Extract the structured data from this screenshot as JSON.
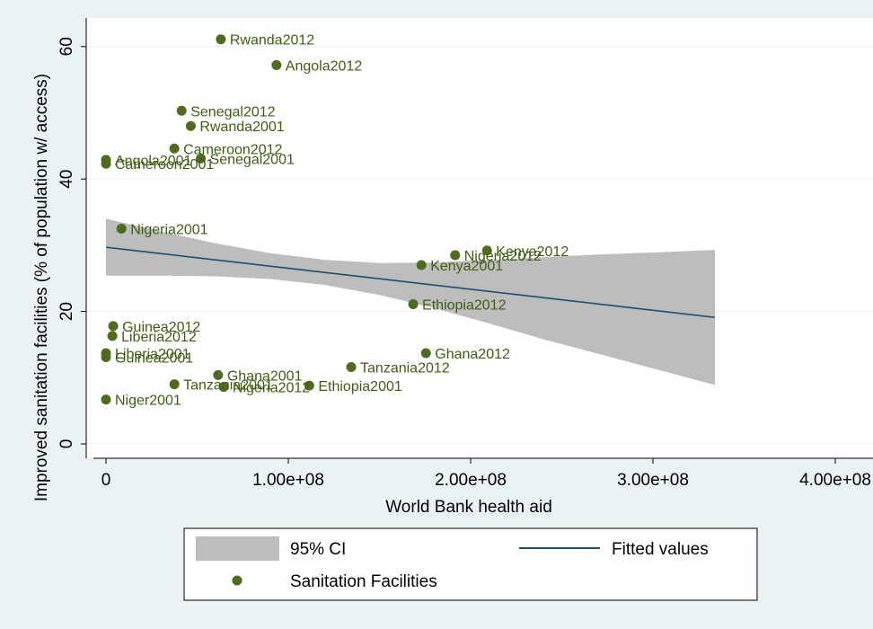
{
  "chart_data": {
    "type": "scatter",
    "xlabel": "World Bank health aid",
    "ylabel": "Improved sanitation facilities (% of population w/ access)",
    "xlim": [
      -4000000,
      405000000
    ],
    "ylim": [
      -4,
      65
    ],
    "x_ticks": [
      {
        "value": 0,
        "label": "0"
      },
      {
        "value": 100000000,
        "label": "1.00e+08"
      },
      {
        "value": 200000000,
        "label": "2.00e+08"
      },
      {
        "value": 300000000,
        "label": "3.00e+08"
      },
      {
        "value": 400000000,
        "label": "4.00e+08"
      }
    ],
    "y_ticks": [
      {
        "value": 0,
        "label": "0"
      },
      {
        "value": 20,
        "label": "20"
      },
      {
        "value": 40,
        "label": "40"
      },
      {
        "value": 60,
        "label": "60"
      }
    ],
    "grid": true,
    "colors": {
      "points": "#4f6b22",
      "labels": "#3e5e14",
      "fit_line": "#1d4f73",
      "ci_band": "#bdbdbd",
      "background": "#eaf2f3",
      "plot_background": "#ffffff"
    },
    "scatter": {
      "name": "Sanitation Facilities",
      "points": [
        {
          "label": "Rwanda2012",
          "x": 63000000,
          "y": 61.1
        },
        {
          "label": "Angola2012",
          "x": 93500000,
          "y": 57.2
        },
        {
          "label": "Senegal2012",
          "x": 41500000,
          "y": 50.3
        },
        {
          "label": "Rwanda2001",
          "x": 46500000,
          "y": 48.0
        },
        {
          "label": "Cameroon2012",
          "x": 37500000,
          "y": 44.6
        },
        {
          "label": "Senegal2001",
          "x": 52000000,
          "y": 43.1
        },
        {
          "label": "Angola2001",
          "x": 0,
          "y": 42.9
        },
        {
          "label": "Cameroon2001",
          "x": 0,
          "y": 42.3
        },
        {
          "label": "Nigeria2001",
          "x": 8500000,
          "y": 32.5
        },
        {
          "label": "Kenya2012",
          "x": 209000000,
          "y": 29.2
        },
        {
          "label": "Nigeria2012",
          "x": 191500000,
          "y": 28.5
        },
        {
          "label": "Kenya2001",
          "x": 173000000,
          "y": 27.0
        },
        {
          "label": "Ethiopia2012",
          "x": 168500000,
          "y": 21.1
        },
        {
          "label": "Guinea2012",
          "x": 4000000,
          "y": 17.8
        },
        {
          "label": "Liberia2012",
          "x": 3500000,
          "y": 16.3
        },
        {
          "label": "Liberia2001",
          "x": 0,
          "y": 13.7
        },
        {
          "label": "Guinea2001",
          "x": 0,
          "y": 13.1
        },
        {
          "label": "Ghana2012",
          "x": 175500000,
          "y": 13.7
        },
        {
          "label": "Tanzania2012",
          "x": 134500000,
          "y": 11.6
        },
        {
          "label": "Ghana2001",
          "x": 61500000,
          "y": 10.4
        },
        {
          "label": "Tanzania2001",
          "x": 37500000,
          "y": 9.0
        },
        {
          "label": "Nigeria2012",
          "x": 64500000,
          "y": 8.6
        },
        {
          "label": "Ethiopia2001",
          "x": 111500000,
          "y": 8.8
        },
        {
          "label": "Niger2001",
          "x": 0,
          "y": 6.7
        }
      ]
    },
    "fit": {
      "name": "Fitted values",
      "x": [
        0,
        334000000
      ],
      "y": [
        29.7,
        19.1
      ]
    },
    "ci": {
      "name": "95% CI",
      "x": [
        0,
        30000000,
        60000000,
        90000000,
        120000000,
        150000000,
        180000000,
        210000000,
        240000000,
        270000000,
        300000000,
        334000000
      ],
      "upper": [
        34.0,
        32.1,
        30.3,
        28.8,
        27.8,
        27.3,
        27.4,
        27.8,
        28.2,
        28.6,
        28.9,
        29.3
      ],
      "lower": [
        25.4,
        25.4,
        25.3,
        24.9,
        24.0,
        22.5,
        20.5,
        18.2,
        15.8,
        13.6,
        11.4,
        8.9
      ]
    },
    "legend": {
      "placement": "bottom",
      "items": [
        {
          "label": "95% CI",
          "kind": "band"
        },
        {
          "label": "Fitted values",
          "kind": "line"
        },
        {
          "label": "Sanitation Facilities",
          "kind": "marker"
        }
      ]
    }
  }
}
